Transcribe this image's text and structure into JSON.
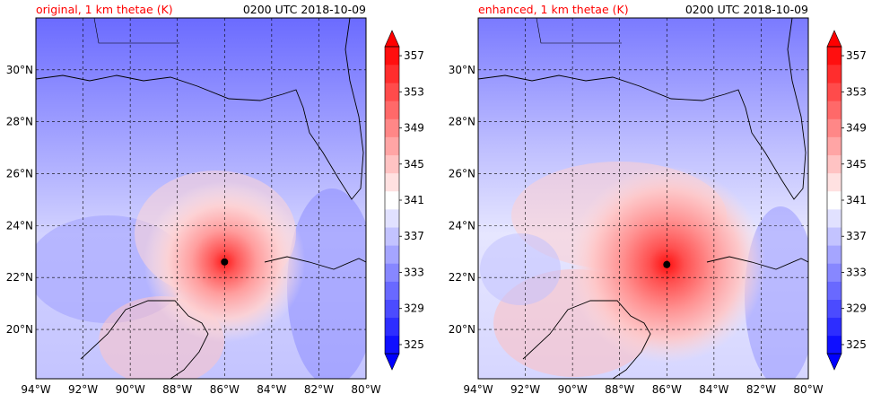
{
  "chart_data": [
    {
      "type": "heatmap",
      "title": "original, 1 km thetae (K)",
      "time_label": "0200 UTC 2018-10-09",
      "x_ticks": [
        "94°W",
        "92°W",
        "90°W",
        "88°W",
        "86°W",
        "84°W",
        "82°W",
        "80°W"
      ],
      "y_ticks": [
        "20°N",
        "22°N",
        "24°N",
        "26°N",
        "28°N",
        "30°N"
      ],
      "xlim": [
        -94,
        -80
      ],
      "ylim": [
        18.1,
        32.0
      ],
      "grid": true,
      "storm_center": {
        "lon": -86.0,
        "lat": 22.6
      },
      "colorbar": {
        "ticks": [
          "325",
          "329",
          "333",
          "337",
          "341",
          "345",
          "349",
          "353",
          "357"
        ],
        "range": [
          325,
          359
        ],
        "interval": 2,
        "extend": "both",
        "colormap": "bwr"
      }
    },
    {
      "type": "heatmap",
      "title": "enhanced, 1 km thetae (K)",
      "time_label": "0200 UTC 2018-10-09",
      "x_ticks": [
        "94°W",
        "92°W",
        "90°W",
        "88°W",
        "86°W",
        "84°W",
        "82°W",
        "80°W"
      ],
      "y_ticks": [
        "20°N",
        "22°N",
        "24°N",
        "26°N",
        "28°N",
        "30°N"
      ],
      "xlim": [
        -94,
        -80
      ],
      "ylim": [
        18.1,
        32.0
      ],
      "grid": true,
      "storm_center": {
        "lon": -86.0,
        "lat": 22.5
      },
      "colorbar": {
        "ticks": [
          "325",
          "329",
          "333",
          "337",
          "341",
          "345",
          "349",
          "353",
          "357"
        ],
        "range": [
          325,
          359
        ],
        "interval": 2,
        "extend": "both",
        "colormap": "bwr"
      }
    }
  ]
}
